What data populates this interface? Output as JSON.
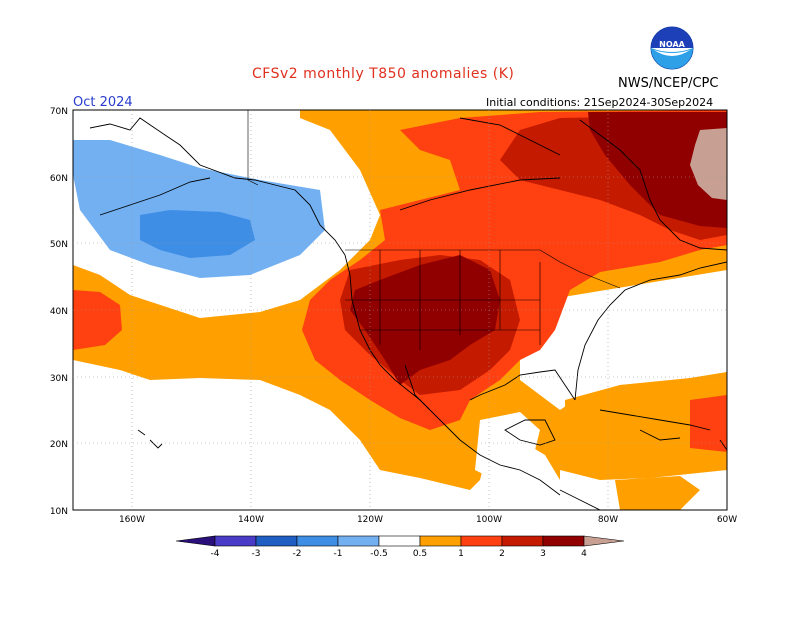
{
  "header": {
    "title": "CFSv2 monthly T850 anomalies (K)",
    "agency": "NWS/NCEP/CPC",
    "logo_text": "NOAA",
    "target_month": "Oct 2024",
    "initial_conditions": "Initial conditions: 21Sep2024-30Sep2024"
  },
  "axes": {
    "lat_labels": [
      "70N",
      "60N",
      "50N",
      "40N",
      "30N",
      "20N",
      "10N"
    ],
    "lon_labels": [
      "160W",
      "140W",
      "120W",
      "100W",
      "80W",
      "60W"
    ]
  },
  "colorbar": {
    "tick_labels": [
      "-4",
      "-3",
      "-2",
      "-1",
      "-0.5",
      "0.5",
      "1",
      "2",
      "3",
      "4"
    ],
    "colors": {
      "below_-4": "#2a0f7a",
      "-4_-3": "#4b3cc8",
      "-3_-2": "#1f5fc4",
      "-2_-1": "#3e8ee6",
      "-1_-0.5": "#72b0f2",
      "-0.5_0.5": "#ffffff",
      "0.5_1": "#ffa000",
      "1_2": "#ff4010",
      "2_3": "#c41a00",
      "3_4": "#900000",
      "above_4": "#c8a093"
    }
  },
  "map": {
    "region": "North Pacific and North America, 10N-70N, 170W-60W",
    "ocean_color": "#ffffff",
    "coastline_color": "#000000"
  }
}
